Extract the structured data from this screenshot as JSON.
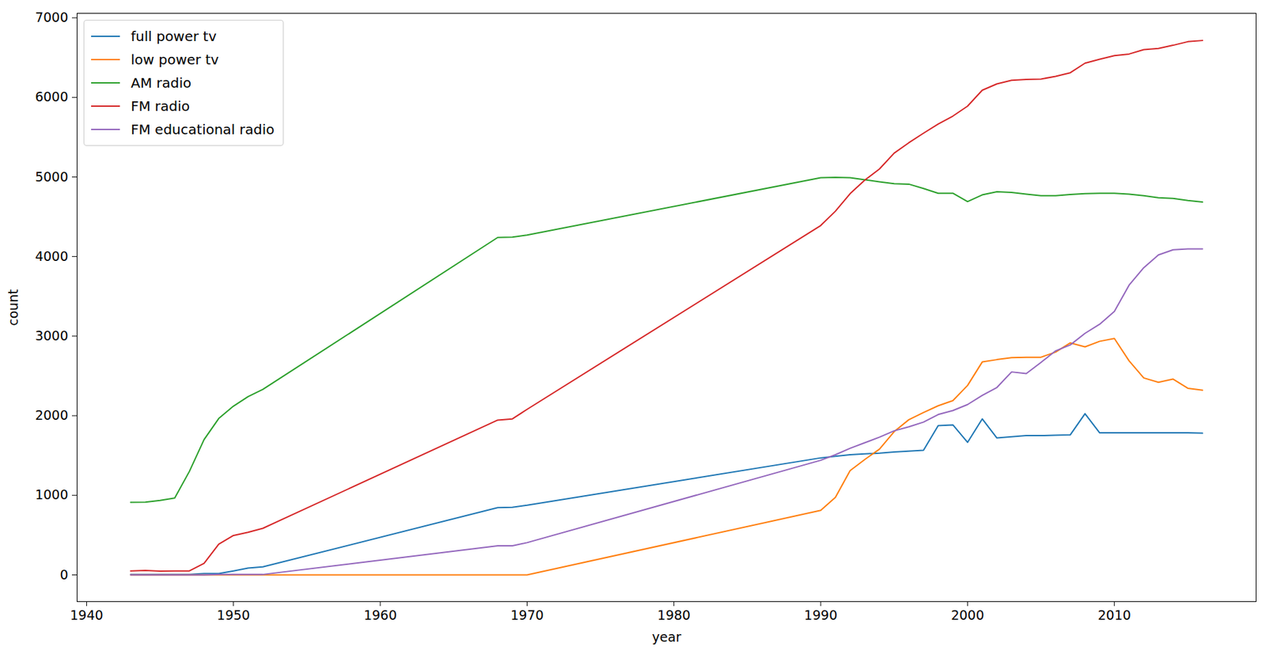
{
  "chart_data": {
    "type": "line",
    "x_label": "year",
    "y_label": "count",
    "x": [
      1943,
      1944,
      1945,
      1946,
      1947,
      1948,
      1949,
      1950,
      1951,
      1952,
      1968,
      1969,
      1970,
      1990,
      1991,
      1992,
      1993,
      1994,
      1995,
      1996,
      1997,
      1998,
      1999,
      2000,
      2001,
      2002,
      2003,
      2004,
      2005,
      2006,
      2007,
      2008,
      2009,
      2010,
      2011,
      2012,
      2013,
      2014,
      2015,
      2016
    ],
    "series": [
      {
        "name": "full power tv",
        "color": "#1f77b4",
        "values": [
          6,
          6,
          6,
          6,
          6,
          16,
          17,
          50,
          85,
          100,
          845,
          850,
          875,
          1470,
          1490,
          1510,
          1520,
          1530,
          1545,
          1555,
          1565,
          1875,
          1885,
          1665,
          1960,
          1720,
          1735,
          1750,
          1750,
          1755,
          1760,
          2025,
          1785,
          1785,
          1785,
          1785,
          1785,
          1785,
          1785,
          1780
        ]
      },
      {
        "name": "low power tv",
        "color": "#ff7f0e",
        "values": [
          0,
          0,
          0,
          0,
          0,
          0,
          0,
          0,
          0,
          0,
          0,
          0,
          0,
          810,
          975,
          1310,
          1450,
          1580,
          1800,
          1950,
          2040,
          2125,
          2190,
          2380,
          2675,
          2705,
          2730,
          2735,
          2735,
          2800,
          2915,
          2865,
          2935,
          2970,
          2690,
          2475,
          2420,
          2460,
          2345,
          2320
        ]
      },
      {
        "name": "AM radio",
        "color": "#2ca02c",
        "values": [
          912,
          913,
          935,
          965,
          1300,
          1700,
          1965,
          2120,
          2240,
          2330,
          4240,
          4245,
          4270,
          4990,
          4995,
          4990,
          4965,
          4940,
          4915,
          4910,
          4855,
          4795,
          4795,
          4690,
          4775,
          4815,
          4805,
          4785,
          4765,
          4765,
          4780,
          4790,
          4795,
          4795,
          4785,
          4765,
          4740,
          4730,
          4705,
          4685
        ]
      },
      {
        "name": "FM radio",
        "color": "#d62728",
        "values": [
          50,
          55,
          48,
          50,
          50,
          145,
          385,
          495,
          535,
          585,
          1945,
          1960,
          2080,
          4390,
          4570,
          4790,
          4960,
          5100,
          5300,
          5430,
          5550,
          5665,
          5765,
          5890,
          6090,
          6170,
          6215,
          6225,
          6230,
          6265,
          6310,
          6430,
          6480,
          6525,
          6545,
          6600,
          6615,
          6655,
          6700,
          6715
        ]
      },
      {
        "name": "FM educational radio",
        "color": "#9467bd",
        "values": [
          0,
          0,
          0,
          0,
          0,
          0,
          5,
          5,
          5,
          5,
          365,
          365,
          405,
          1440,
          1510,
          1590,
          1660,
          1730,
          1810,
          1860,
          1920,
          2015,
          2065,
          2140,
          2255,
          2355,
          2550,
          2530,
          2670,
          2815,
          2890,
          3035,
          3150,
          3310,
          3640,
          3860,
          4020,
          4085,
          4095,
          4095
        ]
      }
    ],
    "xlim": [
      1939.35,
      2019.65
    ],
    "xticks": [
      1940,
      1950,
      1960,
      1970,
      1980,
      1990,
      2000,
      2010
    ],
    "ylim": [
      -336,
      7056
    ],
    "yticks": [
      0,
      1000,
      2000,
      3000,
      4000,
      5000,
      6000,
      7000
    ],
    "grid": false,
    "legend": "upper left"
  }
}
